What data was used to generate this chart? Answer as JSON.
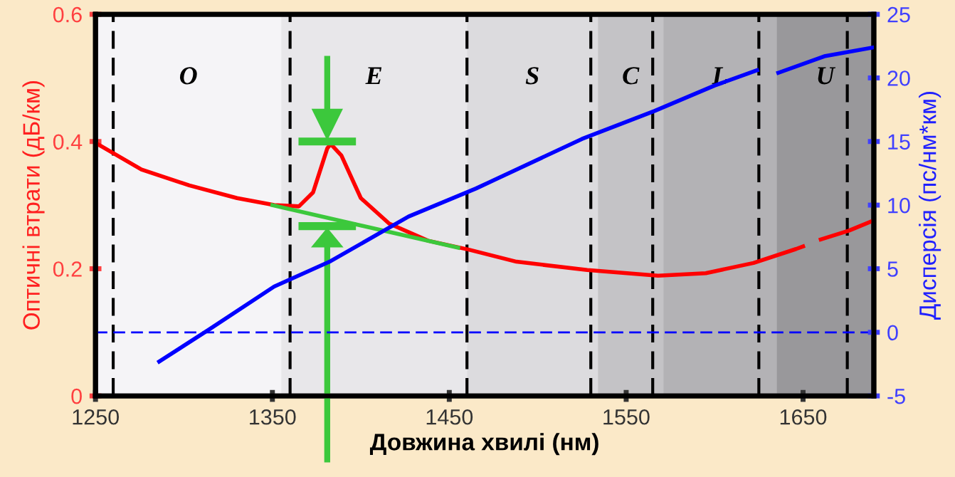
{
  "chart_data": {
    "type": "line",
    "xlabel": "Довжина хвилі (нм)",
    "ylabel": "Оптичні втрати (дБ/км)",
    "y2label": "Дисперсія (пс/нм*км)",
    "xlim": [
      1250,
      1690
    ],
    "xticks": [
      1250,
      1350,
      1450,
      1550,
      1650
    ],
    "ylim": [
      0,
      0.6
    ],
    "yticks": [
      0,
      0.2,
      0.4,
      0.6
    ],
    "y2lim": [
      -5,
      25
    ],
    "y2ticks": [
      -5,
      0,
      5,
      10,
      15,
      20,
      25
    ],
    "series": [
      {
        "color": "#ff0000",
        "x": [
          1250,
          1276,
          1303,
          1330,
          1351,
          1365,
          1373,
          1381,
          1383,
          1389,
          1400,
          1416,
          1438,
          1461,
          1488,
          1528,
          1568,
          1595,
          1622,
          1646,
          1650,
          1655,
          1660,
          1676,
          1690
        ],
        "values": [
          0.398,
          0.356,
          0.331,
          0.311,
          0.3,
          0.298,
          0.32,
          0.389,
          0.396,
          0.378,
          0.311,
          0.271,
          0.244,
          0.23,
          0.211,
          0.198,
          0.189,
          0.193,
          0.209,
          0.231,
          0.235,
          null,
          0.246,
          0.26,
          0.276
        ]
      },
      {
        "color": "#3cc83c",
        "x": [
          1350,
          1455
        ],
        "values": [
          0.3,
          0.233
        ]
      },
      {
        "color": "#0000ff",
        "axis": "y2",
        "x": [
          1286,
          1314,
          1351,
          1383,
          1427,
          1465,
          1525,
          1566,
          1600,
          1624,
          1630,
          1636,
          1662,
          1690
        ],
        "values": [
          -2.3,
          0.2,
          3.6,
          5.6,
          9.1,
          11.3,
          15.2,
          17.4,
          19.4,
          20.6,
          null,
          20.4,
          21.7,
          22.4
        ]
      }
    ],
    "bands": [
      {
        "axis": "x",
        "from": 1250,
        "to": 1355,
        "label": "O",
        "color": "#f5f4f7"
      },
      {
        "axis": "x",
        "from": 1355,
        "to": 1460,
        "label": "E",
        "color": "#e8e7ea"
      },
      {
        "axis": "x",
        "from": 1460,
        "to": 1534,
        "label": "S",
        "color": "#dcdbde"
      },
      {
        "axis": "x",
        "from": 1534,
        "to": 1571,
        "label": "C",
        "color": "#c4c3c6"
      },
      {
        "axis": "x",
        "from": 1571,
        "to": 1635,
        "label": "L",
        "color": "#b3b2b5"
      },
      {
        "axis": "x",
        "from": 1635,
        "to": 1690,
        "label": "U",
        "color": "#99989b"
      }
    ],
    "ref_lines": [
      {
        "axis": "x",
        "value": 1260,
        "color": "#000000",
        "line_style": "dashed"
      },
      {
        "axis": "x",
        "value": 1360,
        "color": "#000000",
        "line_style": "dashed"
      },
      {
        "axis": "x",
        "value": 1460,
        "color": "#000000",
        "line_style": "dashed"
      },
      {
        "axis": "x",
        "value": 1530,
        "color": "#000000",
        "line_style": "dashed"
      },
      {
        "axis": "x",
        "value": 1565,
        "color": "#000000",
        "line_style": "dashed"
      },
      {
        "axis": "x",
        "value": 1625,
        "color": "#000000",
        "line_style": "dashed"
      },
      {
        "axis": "x",
        "value": 1675,
        "color": "#000000",
        "line_style": "dashed"
      },
      {
        "axis": "y2",
        "value": 0,
        "color": "#0000ff",
        "line_style": "dashed"
      }
    ],
    "grid": false,
    "legend": false,
    "line_style": "solid",
    "marker": "none"
  }
}
